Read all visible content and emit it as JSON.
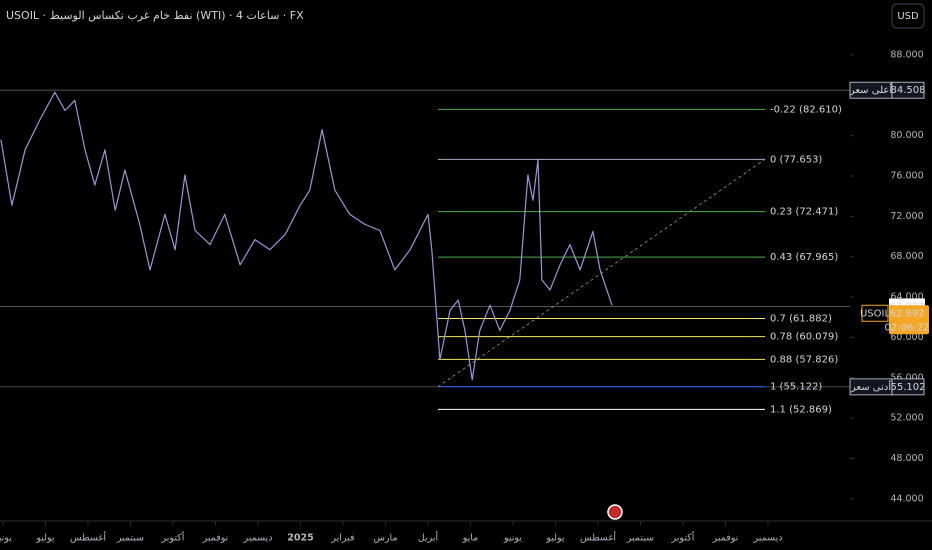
{
  "header": {
    "title": "USOIL · نفط خام غرب تكساس الوسيط (WTI) · 4 ساعات · FX",
    "currency": "USD"
  },
  "chart_data": {
    "type": "line",
    "x": [
      -0.05,
      0.21,
      0.52,
      0.87,
      1.22,
      1.46,
      1.69,
      1.93,
      2.16,
      2.4,
      2.64,
      2.87,
      3.22,
      3.46,
      3.81,
      4.05,
      4.28,
      4.52,
      4.87,
      5.22,
      5.58,
      5.93,
      6.28,
      6.64,
      6.99,
      7.22,
      7.51,
      7.81,
      8.16,
      8.52,
      8.87,
      9.22,
      9.58,
      10.0,
      10.09,
      10.28,
      10.52,
      10.71,
      10.87,
      11.04,
      11.22,
      11.46,
      11.69,
      11.93,
      12.16,
      12.35,
      12.47,
      12.59,
      12.68,
      12.87,
      13.11,
      13.34,
      13.58,
      13.88,
      14.05,
      14.33
    ],
    "series": [
      {
        "name": "USOIL",
        "color": "#9e95d9",
        "values": [
          79.6,
          73.1,
          78.6,
          81.6,
          84.3,
          82.5,
          83.5,
          78.6,
          75.1,
          78.6,
          72.6,
          76.6,
          71.2,
          66.7,
          72.2,
          68.7,
          76.1,
          70.6,
          69.2,
          72.2,
          67.2,
          69.7,
          68.7,
          70.2,
          73.1,
          74.6,
          80.6,
          74.6,
          72.2,
          71.2,
          70.6,
          66.7,
          68.7,
          72.2,
          68.7,
          57.8,
          62.7,
          63.7,
          60.7,
          55.8,
          60.7,
          63.2,
          60.7,
          62.7,
          65.7,
          76.1,
          73.6,
          77.6,
          65.7,
          64.7,
          67.2,
          69.2,
          66.7,
          70.5,
          66.7,
          63.2
        ]
      }
    ],
    "xlim": [
      -0.07,
      19.93
    ],
    "xticks": [
      {
        "value": 0,
        "label": "يونيو"
      },
      {
        "value": 1,
        "label": "يوليو"
      },
      {
        "value": 2,
        "label": "أغسطس"
      },
      {
        "value": 3,
        "label": "سبتمبر"
      },
      {
        "value": 4,
        "label": "أكتوبر"
      },
      {
        "value": 5,
        "label": "نوفمبر"
      },
      {
        "value": 6,
        "label": "ديسمبر"
      },
      {
        "value": 7,
        "label": "2025"
      },
      {
        "value": 8,
        "label": "فبراير"
      },
      {
        "value": 9,
        "label": "مارس"
      },
      {
        "value": 10,
        "label": "أبريل"
      },
      {
        "value": 11,
        "label": "مايو"
      },
      {
        "value": 12,
        "label": "يونيو"
      },
      {
        "value": 13,
        "label": "يوليو"
      },
      {
        "value": 14,
        "label": "أغسطس"
      },
      {
        "value": 15,
        "label": "سبتمبر"
      },
      {
        "value": 16,
        "label": "أكتوبر"
      },
      {
        "value": 17,
        "label": "نوفمبر"
      },
      {
        "value": 18,
        "label": "ديسمبر"
      }
    ],
    "ylim": [
      42.4,
      93.45
    ],
    "yticks": [
      {
        "value": 44,
        "label": "44.000"
      },
      {
        "value": 48,
        "label": "48.000"
      },
      {
        "value": 52,
        "label": "52.000"
      },
      {
        "value": 56,
        "label": "56.000"
      },
      {
        "value": 60,
        "label": "60.000"
      },
      {
        "value": 64,
        "label": "64.000"
      },
      {
        "value": 68,
        "label": "68.000"
      },
      {
        "value": 72,
        "label": "72.000"
      },
      {
        "value": 76,
        "label": "76.000"
      },
      {
        "value": 80,
        "label": "80.000"
      },
      {
        "value": 84,
        "label": "84.000"
      },
      {
        "value": 88,
        "label": "88.000"
      }
    ],
    "fib_levels": [
      {
        "label": "-0.22 (82.610)",
        "value": 82.61,
        "color": "#4caf50"
      },
      {
        "label": "0 (77.653)",
        "value": 77.653,
        "color": "#a9adc8"
      },
      {
        "label": "0.23 (72.471)",
        "value": 72.471,
        "color": "#4caf50"
      },
      {
        "label": "0.43 (67.965)",
        "value": 67.965,
        "color": "#4caf50"
      },
      {
        "label": "0.7 (61.882)",
        "value": 61.882,
        "color": "#f5e663"
      },
      {
        "label": "0.78 (60.079)",
        "value": 60.079,
        "color": "#f5e663"
      },
      {
        "label": "0.88 (57.826)",
        "value": 57.826,
        "color": "#f5e663"
      },
      {
        "label": "1 (55.122)",
        "value": 55.122,
        "color": "#2962ff"
      },
      {
        "label": "1.1 (52.869)",
        "value": 52.869,
        "color": "#ffffff"
      }
    ],
    "price_markers": [
      {
        "label": "أعلى سعر",
        "value": 84.508,
        "value_label": "84.508"
      },
      {
        "label": "أدنى سعر",
        "value": 55.102,
        "value_label": "55.102"
      }
    ],
    "last_price": {
      "value": 63.072,
      "value_label": "63.072"
    },
    "symbol_price": {
      "value": 62.892,
      "value_label": "62.892",
      "countdown": "02:06:22"
    }
  }
}
